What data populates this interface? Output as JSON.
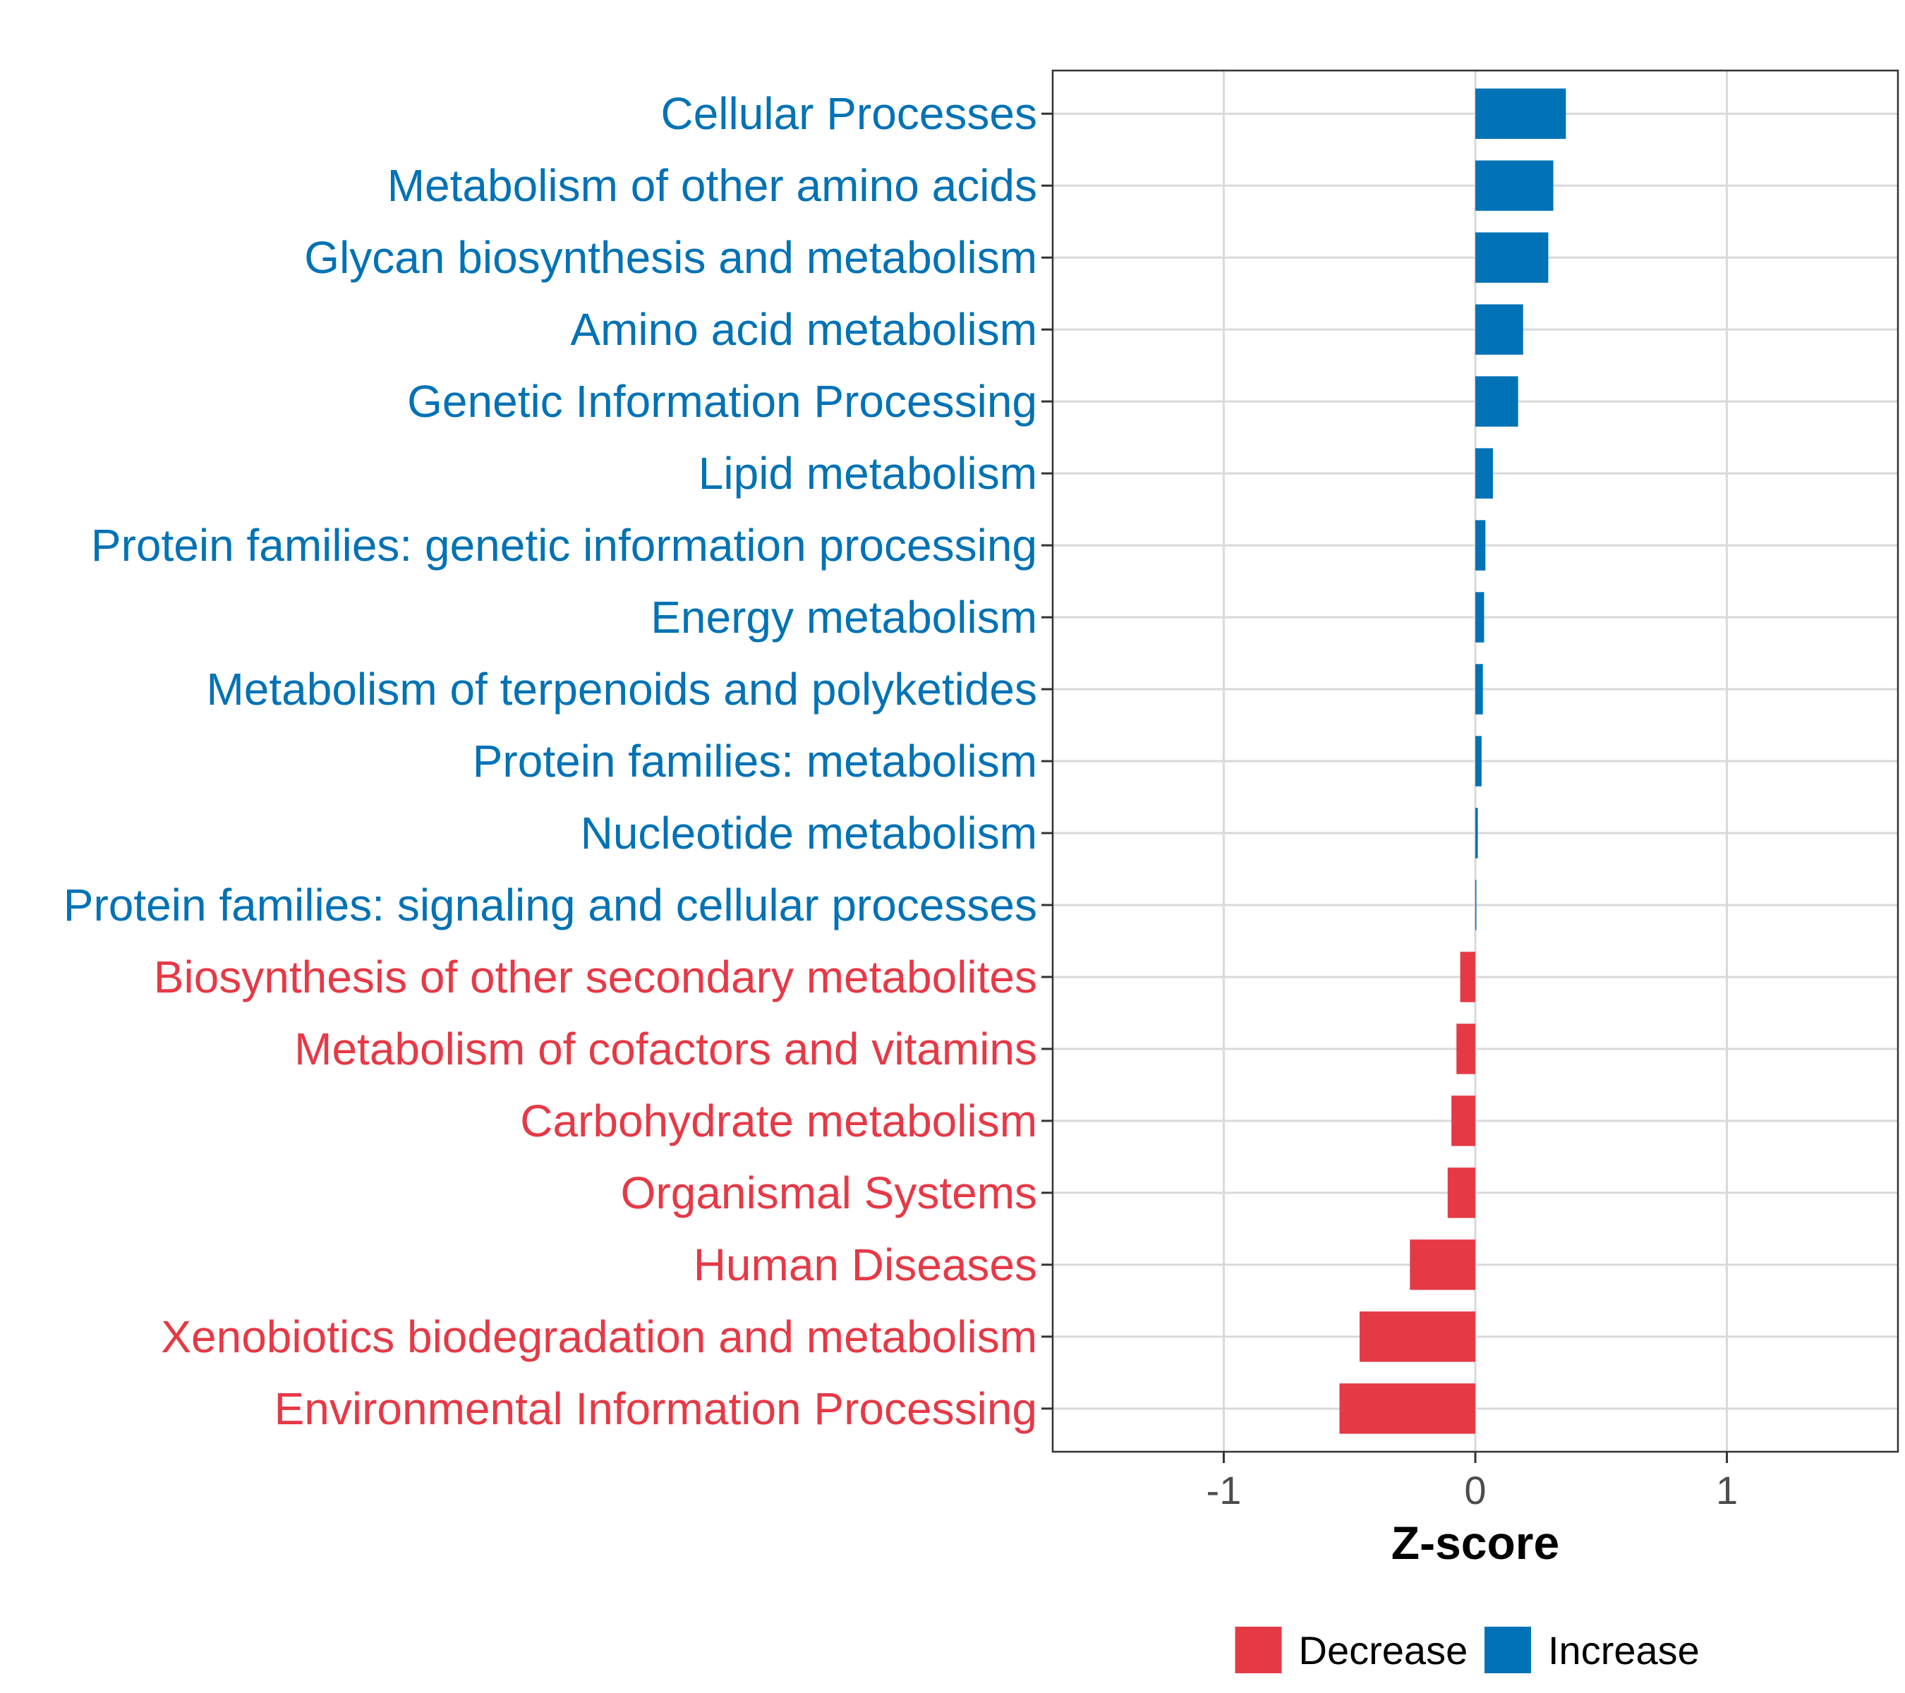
{
  "chart_data": {
    "type": "bar",
    "orientation": "horizontal",
    "categories": [
      "Cellular Processes",
      "Metabolism of other amino acids",
      "Glycan biosynthesis and metabolism",
      "Amino acid metabolism",
      "Genetic Information Processing",
      "Lipid metabolism",
      "Protein families: genetic information processing",
      "Energy metabolism",
      "Metabolism of terpenoids and polyketides",
      "Protein families: metabolism",
      "Nucleotide metabolism",
      "Protein families: signaling and cellular processes",
      "Biosynthesis of other secondary metabolites",
      "Metabolism of cofactors and vitamins",
      "Carbohydrate metabolism",
      "Organismal Systems",
      "Human Diseases",
      "Xenobiotics biodegradation and metabolism",
      "Environmental Information Processing"
    ],
    "values": [
      0.36,
      0.31,
      0.29,
      0.19,
      0.17,
      0.07,
      0.04,
      0.035,
      0.03,
      0.025,
      0.01,
      0.002,
      -0.06,
      -0.075,
      -0.095,
      -0.11,
      -0.26,
      -0.46,
      -0.54
    ],
    "groups": [
      "Increase",
      "Increase",
      "Increase",
      "Increase",
      "Increase",
      "Increase",
      "Increase",
      "Increase",
      "Increase",
      "Increase",
      "Increase",
      "Increase",
      "Decrease",
      "Decrease",
      "Decrease",
      "Decrease",
      "Decrease",
      "Decrease",
      "Decrease"
    ],
    "xlabel": "Z-score",
    "ylabel": "",
    "xlim": [
      -1.68,
      1.68
    ],
    "xticks": [
      -1,
      0,
      1
    ],
    "xtick_labels": [
      "-1",
      "0",
      "1"
    ],
    "grid": true,
    "legend": {
      "position": "bottom",
      "entries": [
        {
          "label": "Decrease",
          "color": "#E63946"
        },
        {
          "label": "Increase",
          "color": "#0072B5"
        }
      ]
    },
    "colors": {
      "Decrease": "#E63946",
      "Increase": "#0072B5"
    }
  }
}
